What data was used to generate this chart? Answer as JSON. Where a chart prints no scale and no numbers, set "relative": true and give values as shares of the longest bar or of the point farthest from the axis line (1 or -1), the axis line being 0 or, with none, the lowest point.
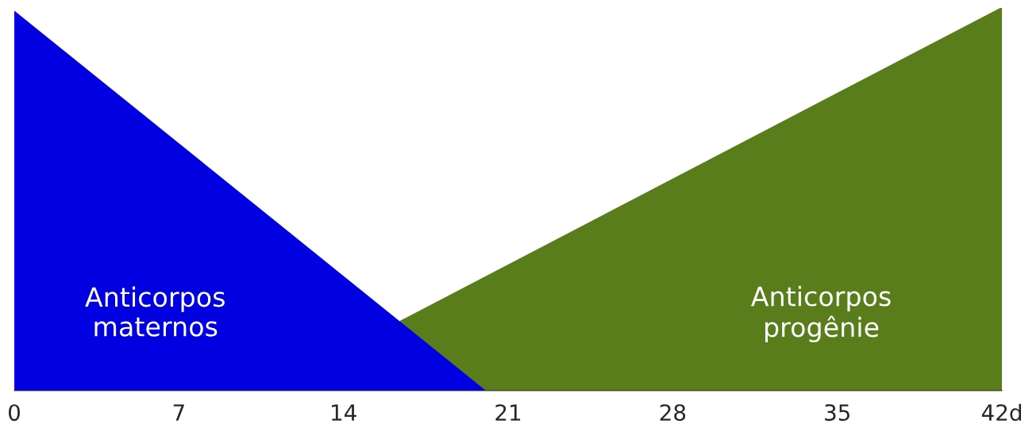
{
  "chart_data": {
    "type": "area",
    "relative": true,
    "series": [
      {
        "name": "Anticorpos progênie",
        "color": "#5a7d1c",
        "x": [
          16.4,
          42
        ],
        "values": [
          0.18,
          1
        ]
      },
      {
        "name": "Anticorpos maternos",
        "color": "#0000e0",
        "x": [
          0,
          20
        ],
        "values": [
          0.99,
          0
        ]
      }
    ],
    "xlim": [
      0,
      42
    ],
    "xticks": [
      0,
      7,
      14,
      21,
      28,
      35,
      {
        "value": 42,
        "label": "42d"
      }
    ],
    "grid": false,
    "legend": false
  }
}
